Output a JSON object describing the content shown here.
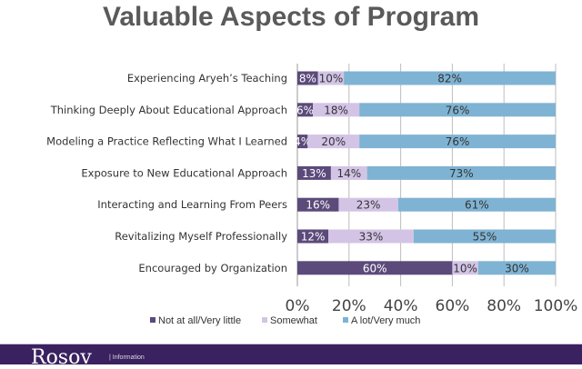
{
  "chart_data": {
    "type": "bar",
    "orientation": "horizontal",
    "stacked": true,
    "title": "Valuable Aspects of Program",
    "categories": [
      "Experiencing Aryeh’s Teaching",
      "Thinking Deeply About Educational Approach",
      "Modeling a Practice Reflecting What I Learned",
      "Exposure to New Educational Approach",
      "Interacting and Learning From Peers",
      "Revitalizing Myself Professionally",
      "Encouraged by Organization"
    ],
    "series": [
      {
        "name": "Not at all/Very little",
        "color": "#5b4a7a",
        "values": [
          8,
          6,
          4,
          13,
          16,
          12,
          60
        ]
      },
      {
        "name": "Somewhat",
        "color": "#d3c4e6",
        "values": [
          10,
          18,
          20,
          14,
          23,
          33,
          10
        ]
      },
      {
        "name": "A lot/Very much",
        "color": "#7fb3d3",
        "values": [
          82,
          76,
          76,
          73,
          61,
          55,
          30
        ]
      }
    ],
    "xlim": [
      0,
      100
    ],
    "xticks": [
      "0%",
      "20%",
      "40%",
      "60%",
      "80%",
      "100%"
    ],
    "grid": true,
    "legend_position": "bottom"
  },
  "footer": {
    "brand": "Rosov",
    "sub": "| Information"
  }
}
